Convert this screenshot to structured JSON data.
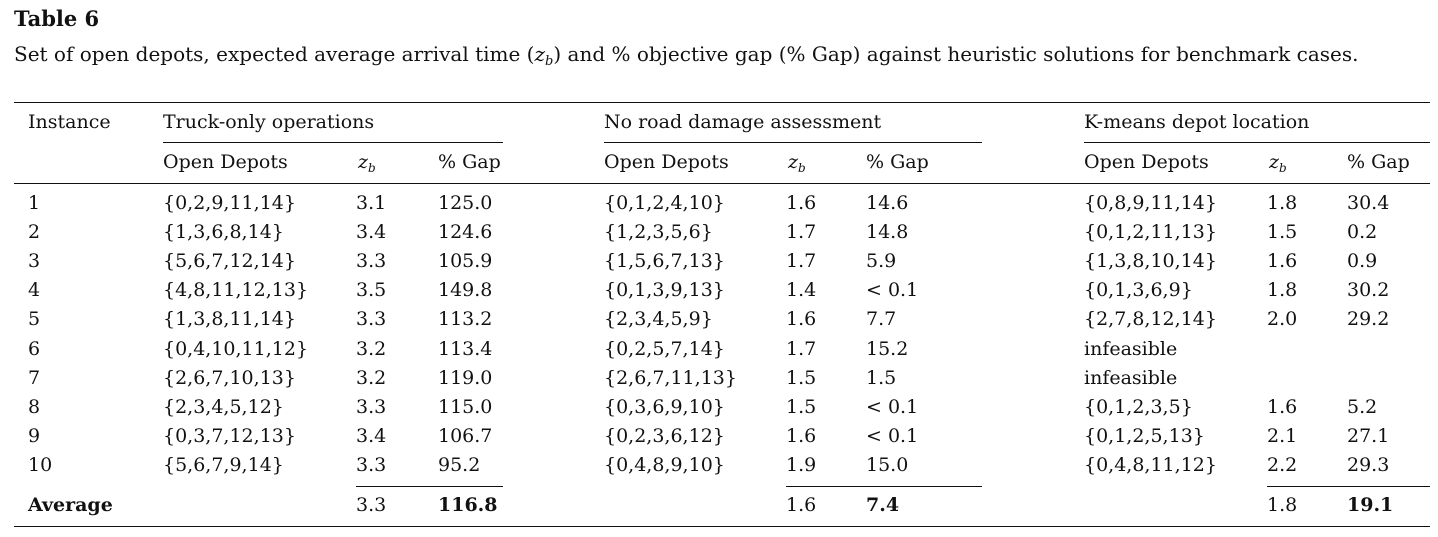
{
  "table_label": "Table 6",
  "caption": {
    "part1": "Set of open depots, expected average arrival time (",
    "z_var": "z",
    "z_sub": "b",
    "part2": ") and % objective gap (% Gap) against heuristic solutions for benchmark cases."
  },
  "headers": {
    "instance": "Instance",
    "groups": [
      "Truck-only operations",
      "No road damage assessment",
      "K-means depot location"
    ],
    "sub": {
      "depots": "Open Depots",
      "zb_var": "z",
      "zb_sub": "b",
      "gap": "% Gap"
    }
  },
  "rows": [
    [
      "1",
      "{0,2,9,11,14}",
      "3.1",
      "125.0",
      "{0,1,2,4,10}",
      "1.6",
      "14.6",
      "{0,8,9,11,14}",
      "1.8",
      "30.4"
    ],
    [
      "2",
      "{1,3,6,8,14}",
      "3.4",
      "124.6",
      "{1,2,3,5,6}",
      "1.7",
      "14.8",
      "{0,1,2,11,13}",
      "1.5",
      "0.2"
    ],
    [
      "3",
      "{5,6,7,12,14}",
      "3.3",
      "105.9",
      "{1,5,6,7,13}",
      "1.7",
      "5.9",
      "{1,3,8,10,14}",
      "1.6",
      "0.9"
    ],
    [
      "4",
      "{4,8,11,12,13}",
      "3.5",
      "149.8",
      "{0,1,3,9,13}",
      "1.4",
      "< 0.1",
      "{0,1,3,6,9}",
      "1.8",
      "30.2"
    ],
    [
      "5",
      "{1,3,8,11,14}",
      "3.3",
      "113.2",
      "{2,3,4,5,9}",
      "1.6",
      "7.7",
      "{2,7,8,12,14}",
      "2.0",
      "29.2"
    ],
    [
      "6",
      "{0,4,10,11,12}",
      "3.2",
      "113.4",
      "{0,2,5,7,14}",
      "1.7",
      "15.2",
      "infeasible",
      "",
      ""
    ],
    [
      "7",
      "{2,6,7,10,13}",
      "3.2",
      "119.0",
      "{2,6,7,11,13}",
      "1.5",
      "1.5",
      "infeasible",
      "",
      ""
    ],
    [
      "8",
      "{2,3,4,5,12}",
      "3.3",
      "115.0",
      "{0,3,6,9,10}",
      "1.5",
      "< 0.1",
      "{0,1,2,3,5}",
      "1.6",
      "5.2"
    ],
    [
      "9",
      "{0,3,7,12,13}",
      "3.4",
      "106.7",
      "{0,2,3,6,12}",
      "1.6",
      "< 0.1",
      "{0,1,2,5,13}",
      "2.1",
      "27.1"
    ],
    [
      "10",
      "{5,6,7,9,14}",
      "3.3",
      "95.2",
      "{0,4,8,9,10}",
      "1.9",
      "15.0",
      "{0,4,8,11,12}",
      "2.2",
      "29.3"
    ]
  ],
  "average": {
    "label": "Average",
    "values": [
      "3.3",
      "116.8",
      "1.6",
      "7.4",
      "1.8",
      "19.1"
    ]
  }
}
